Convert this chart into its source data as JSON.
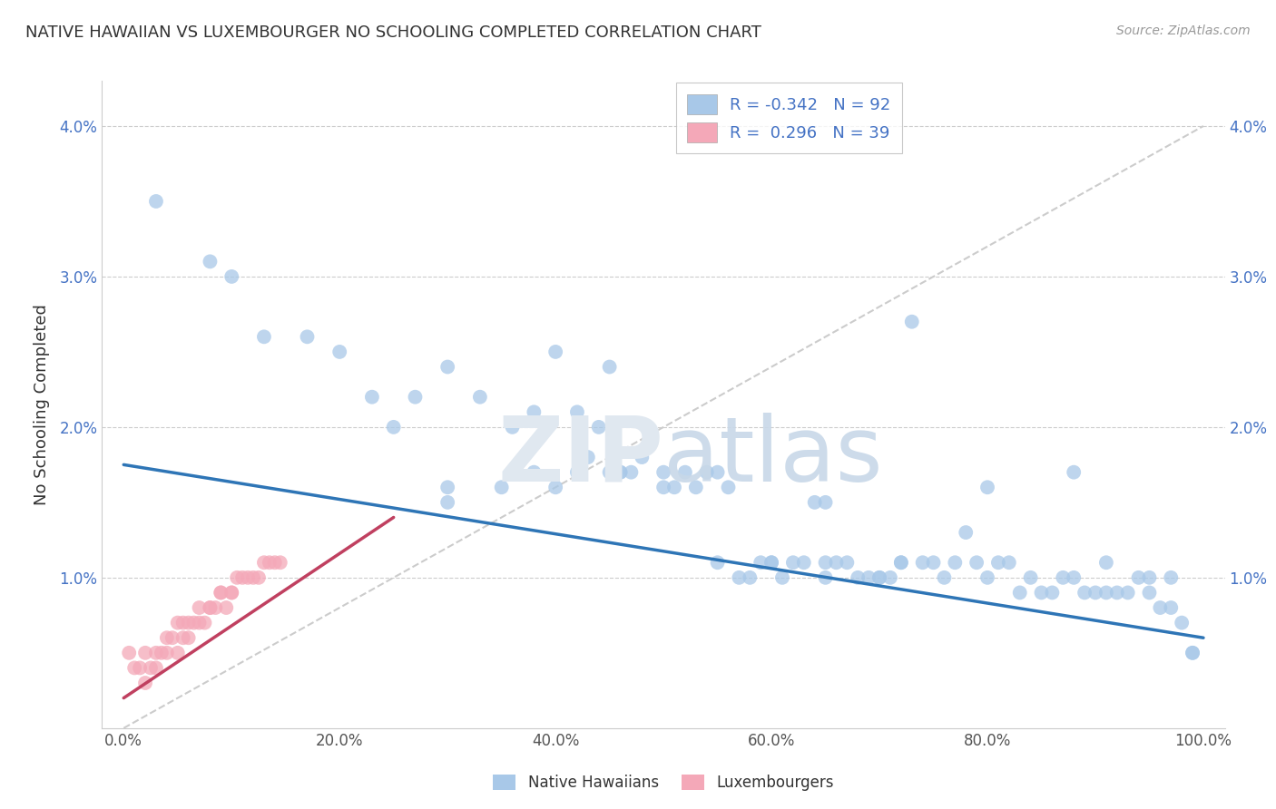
{
  "title": "NATIVE HAWAIIAN VS LUXEMBOURGER NO SCHOOLING COMPLETED CORRELATION CHART",
  "source": "Source: ZipAtlas.com",
  "ylabel": "No Schooling Completed",
  "r_blue": -0.342,
  "n_blue": 92,
  "r_pink": 0.296,
  "n_pink": 39,
  "blue_color": "#A8C8E8",
  "pink_color": "#F4A8B8",
  "line_blue": "#2E75B6",
  "line_pink": "#C04060",
  "diag_line_color": "#CCCCCC",
  "background_color": "#FFFFFF",
  "grid_color": "#CCCCCC",
  "title_color": "#333333",
  "legend_text_color": "#4472C4",
  "legend_labels": [
    "Native Hawaiians",
    "Luxembourgers"
  ],
  "blue_x": [
    3,
    8,
    10,
    13,
    17,
    20,
    23,
    27,
    30,
    33,
    36,
    38,
    40,
    42,
    43,
    44,
    45,
    46,
    47,
    48,
    50,
    51,
    52,
    53,
    54,
    55,
    56,
    57,
    58,
    59,
    60,
    61,
    62,
    63,
    64,
    65,
    65,
    66,
    67,
    68,
    69,
    70,
    71,
    72,
    72,
    73,
    74,
    75,
    76,
    77,
    78,
    79,
    80,
    81,
    82,
    83,
    84,
    85,
    86,
    87,
    88,
    88,
    89,
    90,
    91,
    91,
    92,
    93,
    94,
    95,
    95,
    96,
    97,
    97,
    98,
    99,
    99,
    50,
    45,
    40,
    35,
    30,
    25,
    38,
    42,
    46,
    30,
    55,
    60,
    65,
    70,
    80
  ],
  "blue_y": [
    3.5,
    3.1,
    3.0,
    2.6,
    2.6,
    2.5,
    2.2,
    2.2,
    2.4,
    2.2,
    2.0,
    2.1,
    2.5,
    2.1,
    1.8,
    2.0,
    1.7,
    1.7,
    1.7,
    1.8,
    1.7,
    1.6,
    1.7,
    1.6,
    1.7,
    1.7,
    1.6,
    1.0,
    1.0,
    1.1,
    1.1,
    1.0,
    1.1,
    1.1,
    1.5,
    1.1,
    1.5,
    1.1,
    1.1,
    1.0,
    1.0,
    1.0,
    1.0,
    1.1,
    1.1,
    2.7,
    1.1,
    1.1,
    1.0,
    1.1,
    1.3,
    1.1,
    1.0,
    1.1,
    1.1,
    0.9,
    1.0,
    0.9,
    0.9,
    1.0,
    1.0,
    1.7,
    0.9,
    0.9,
    0.9,
    1.1,
    0.9,
    0.9,
    1.0,
    0.9,
    1.0,
    0.8,
    1.0,
    0.8,
    0.7,
    0.5,
    0.5,
    1.6,
    2.4,
    1.6,
    1.6,
    1.6,
    2.0,
    1.7,
    1.7,
    1.7,
    1.5,
    1.1,
    1.1,
    1.0,
    1.0,
    1.6
  ],
  "pink_x": [
    0.5,
    1,
    1.5,
    2,
    2,
    2.5,
    3,
    3,
    3.5,
    4,
    4,
    4.5,
    5,
    5,
    5.5,
    5.5,
    6,
    6,
    6.5,
    7,
    7,
    7.5,
    8,
    8,
    8.5,
    9,
    9,
    9.5,
    10,
    10,
    10.5,
    11,
    11.5,
    12,
    12.5,
    13,
    13.5,
    14,
    14.5
  ],
  "pink_y": [
    0.5,
    0.4,
    0.4,
    0.3,
    0.5,
    0.4,
    0.5,
    0.4,
    0.5,
    0.6,
    0.5,
    0.6,
    0.5,
    0.7,
    0.6,
    0.7,
    0.7,
    0.6,
    0.7,
    0.7,
    0.8,
    0.7,
    0.8,
    0.8,
    0.8,
    0.9,
    0.9,
    0.8,
    0.9,
    0.9,
    1.0,
    1.0,
    1.0,
    1.0,
    1.0,
    1.1,
    1.1,
    1.1,
    1.1
  ],
  "blue_line_x0": 0,
  "blue_line_x1": 100,
  "blue_line_y0": 1.75,
  "blue_line_y1": 0.6,
  "pink_line_x0": 0,
  "pink_line_x1": 25,
  "pink_line_y0": 0.2,
  "pink_line_y1": 1.4,
  "diag_x0": 0,
  "diag_x1": 100,
  "diag_y0": 0,
  "diag_y1": 4.0,
  "xlim": [
    -2,
    102
  ],
  "ylim": [
    0,
    4.3
  ],
  "x_ticks": [
    0,
    20,
    40,
    60,
    80,
    100
  ],
  "y_ticks": [
    1.0,
    2.0,
    3.0,
    4.0
  ],
  "marker_size": 130
}
